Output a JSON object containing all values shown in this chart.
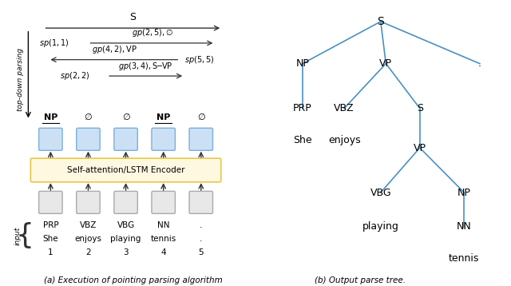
{
  "fig_width": 6.4,
  "fig_height": 3.58,
  "left_caption": "(a) Execution of pointing parsing algorithm",
  "right_caption": "(b) Output parse tree.",
  "encoder_label": "Self-attention/LSTM Encoder",
  "encoder_color": "#fff8e1",
  "encoder_border": "#e6c84a",
  "box_blue_face": "#cce0f5",
  "box_blue_edge": "#7ab0d8",
  "box_gray_face": "#e8e8e8",
  "box_gray_edge": "#aaaaaa",
  "arrow_color": "#333333",
  "span_arrow_color": "#333333",
  "tree_color": "#4a90c4",
  "words": [
    [
      "PRP",
      "She",
      "1"
    ],
    [
      "VBZ",
      "enjoys",
      "2"
    ],
    [
      "VBG",
      "playing",
      "3"
    ],
    [
      "NN",
      "tennis",
      "4"
    ],
    [
      ".",
      ".",
      "5"
    ]
  ],
  "top_labels": [
    "NP",
    "∅",
    "∅",
    "NP",
    "∅"
  ]
}
